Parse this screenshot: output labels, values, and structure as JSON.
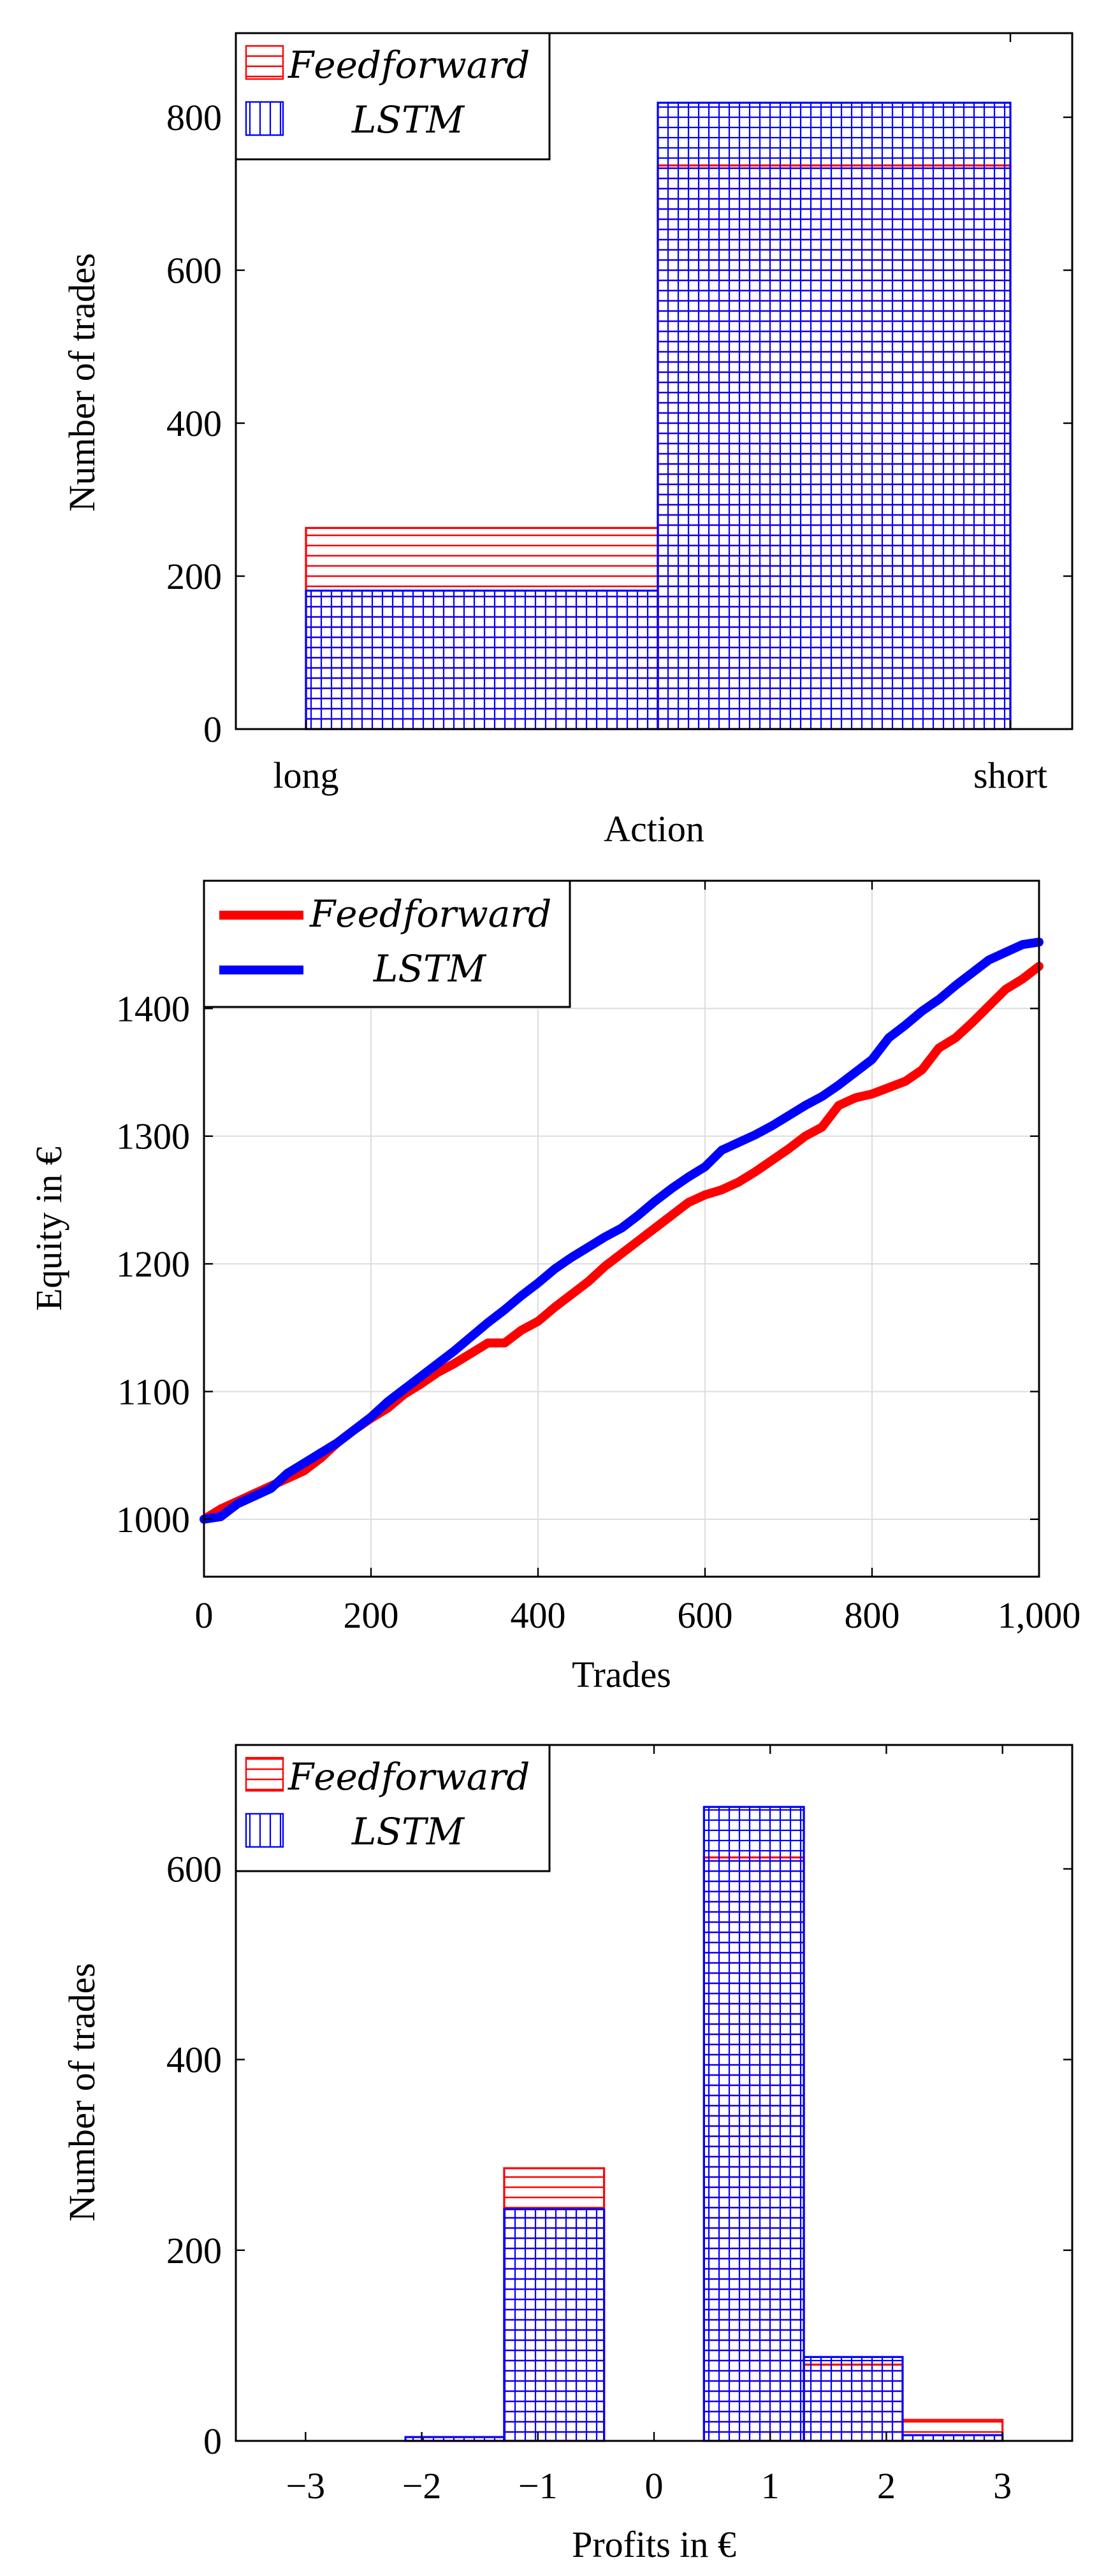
{
  "charts": [
    {
      "type": "bar",
      "title": "",
      "xlabel": "Action",
      "ylabel": "Number of trades",
      "categories": [
        "long",
        "short"
      ],
      "series": [
        {
          "name": "Feedforward",
          "legend_label": "𝐹𝑒𝑒𝑑𝑓𝑜𝑟𝑤𝑎𝑟𝑑",
          "color": "#ff0000",
          "pattern": "horizontal-lines",
          "values": [
            263,
            737
          ]
        },
        {
          "name": "LSTM",
          "legend_label": "𝐿𝑆𝑇𝑀",
          "color": "#0000ff",
          "pattern": "grid",
          "values": [
            181,
            819
          ]
        }
      ],
      "ylim": [
        0,
        910
      ],
      "yticks": [
        0,
        200,
        400,
        600,
        800
      ],
      "legend": "top-left"
    },
    {
      "type": "line",
      "title": "",
      "xlabel": "Trades",
      "ylabel": "Equity in €",
      "xlim": [
        0,
        1000
      ],
      "ylim": [
        955,
        1500
      ],
      "xticks": [
        0,
        200,
        400,
        600,
        800,
        1000
      ],
      "xtick_labels": [
        "0",
        "200",
        "400",
        "600",
        "800",
        "1,000"
      ],
      "yticks": [
        1000,
        1100,
        1200,
        1300,
        1400
      ],
      "grid": true,
      "legend": "top-left",
      "series": [
        {
          "name": "Feedforward",
          "legend_label": "𝐹𝑒𝑒𝑑𝑓𝑜𝑟𝑤𝑎𝑟𝑑",
          "color": "#ff0000",
          "x": [
            0,
            20,
            40,
            60,
            80,
            100,
            120,
            140,
            160,
            180,
            200,
            220,
            240,
            260,
            280,
            300,
            320,
            340,
            360,
            380,
            400,
            420,
            440,
            460,
            480,
            500,
            520,
            540,
            560,
            580,
            600,
            620,
            640,
            660,
            680,
            700,
            720,
            740,
            760,
            780,
            800,
            820,
            840,
            860,
            880,
            900,
            920,
            940,
            960,
            980,
            1000
          ],
          "y": [
            1000,
            1008,
            1014,
            1020,
            1026,
            1032,
            1038,
            1048,
            1060,
            1070,
            1079,
            1087,
            1098,
            1106,
            1115,
            1122,
            1130,
            1138,
            1138,
            1148,
            1155,
            1166,
            1176,
            1186,
            1198,
            1208,
            1218,
            1228,
            1238,
            1248,
            1254,
            1258,
            1264,
            1272,
            1281,
            1290,
            1300,
            1307,
            1324,
            1330,
            1333,
            1338,
            1343,
            1352,
            1369,
            1377,
            1389,
            1402,
            1415,
            1423,
            1433
          ]
        },
        {
          "name": "LSTM",
          "legend_label": "𝐿𝑆𝑇𝑀",
          "color": "#0000ff",
          "x": [
            0,
            20,
            40,
            60,
            80,
            100,
            120,
            140,
            160,
            180,
            200,
            220,
            240,
            260,
            280,
            300,
            320,
            340,
            360,
            380,
            400,
            420,
            440,
            460,
            480,
            500,
            520,
            540,
            560,
            580,
            600,
            620,
            640,
            660,
            680,
            700,
            720,
            740,
            760,
            780,
            800,
            820,
            840,
            860,
            880,
            900,
            920,
            940,
            960,
            980,
            1000
          ],
          "y": [
            1000,
            1002,
            1012,
            1018,
            1024,
            1036,
            1044,
            1052,
            1060,
            1070,
            1080,
            1092,
            1102,
            1112,
            1122,
            1132,
            1143,
            1154,
            1164,
            1175,
            1185,
            1196,
            1205,
            1213,
            1221,
            1228,
            1238,
            1249,
            1259,
            1268,
            1276,
            1289,
            1295,
            1301,
            1308,
            1316,
            1324,
            1331,
            1340,
            1350,
            1360,
            1377,
            1387,
            1398,
            1407,
            1418,
            1428,
            1438,
            1444,
            1450,
            1452
          ]
        }
      ]
    },
    {
      "type": "bar",
      "title": "",
      "xlabel": "Profits in €",
      "ylabel": "Number of trades",
      "xlim": [
        -3.6,
        3.6
      ],
      "xticks": [
        -3,
        -2,
        -1,
        0,
        1,
        2,
        3
      ],
      "xtick_labels": [
        "−3",
        "−2",
        "−1",
        "0",
        "1",
        "2",
        "3"
      ],
      "ylim": [
        0,
        730
      ],
      "yticks": [
        0,
        200,
        400,
        600
      ],
      "bin_edges": [
        -2.14,
        -1.29,
        -0.43,
        0.43,
        1.29,
        2.14,
        3.0
      ],
      "series": [
        {
          "name": "Feedforward",
          "legend_label": "𝐹𝑒𝑒𝑑𝑓𝑜𝑟𝑤𝑎𝑟𝑑",
          "color": "#ff0000",
          "pattern": "horizontal-lines",
          "values": [
            4,
            286,
            0,
            612,
            80,
            22
          ]
        },
        {
          "name": "LSTM",
          "legend_label": "𝐿𝑆𝑇𝑀",
          "color": "#0000ff",
          "pattern": "grid",
          "values": [
            4,
            243,
            0,
            665,
            88,
            6
          ]
        }
      ],
      "legend": "top-left"
    }
  ]
}
